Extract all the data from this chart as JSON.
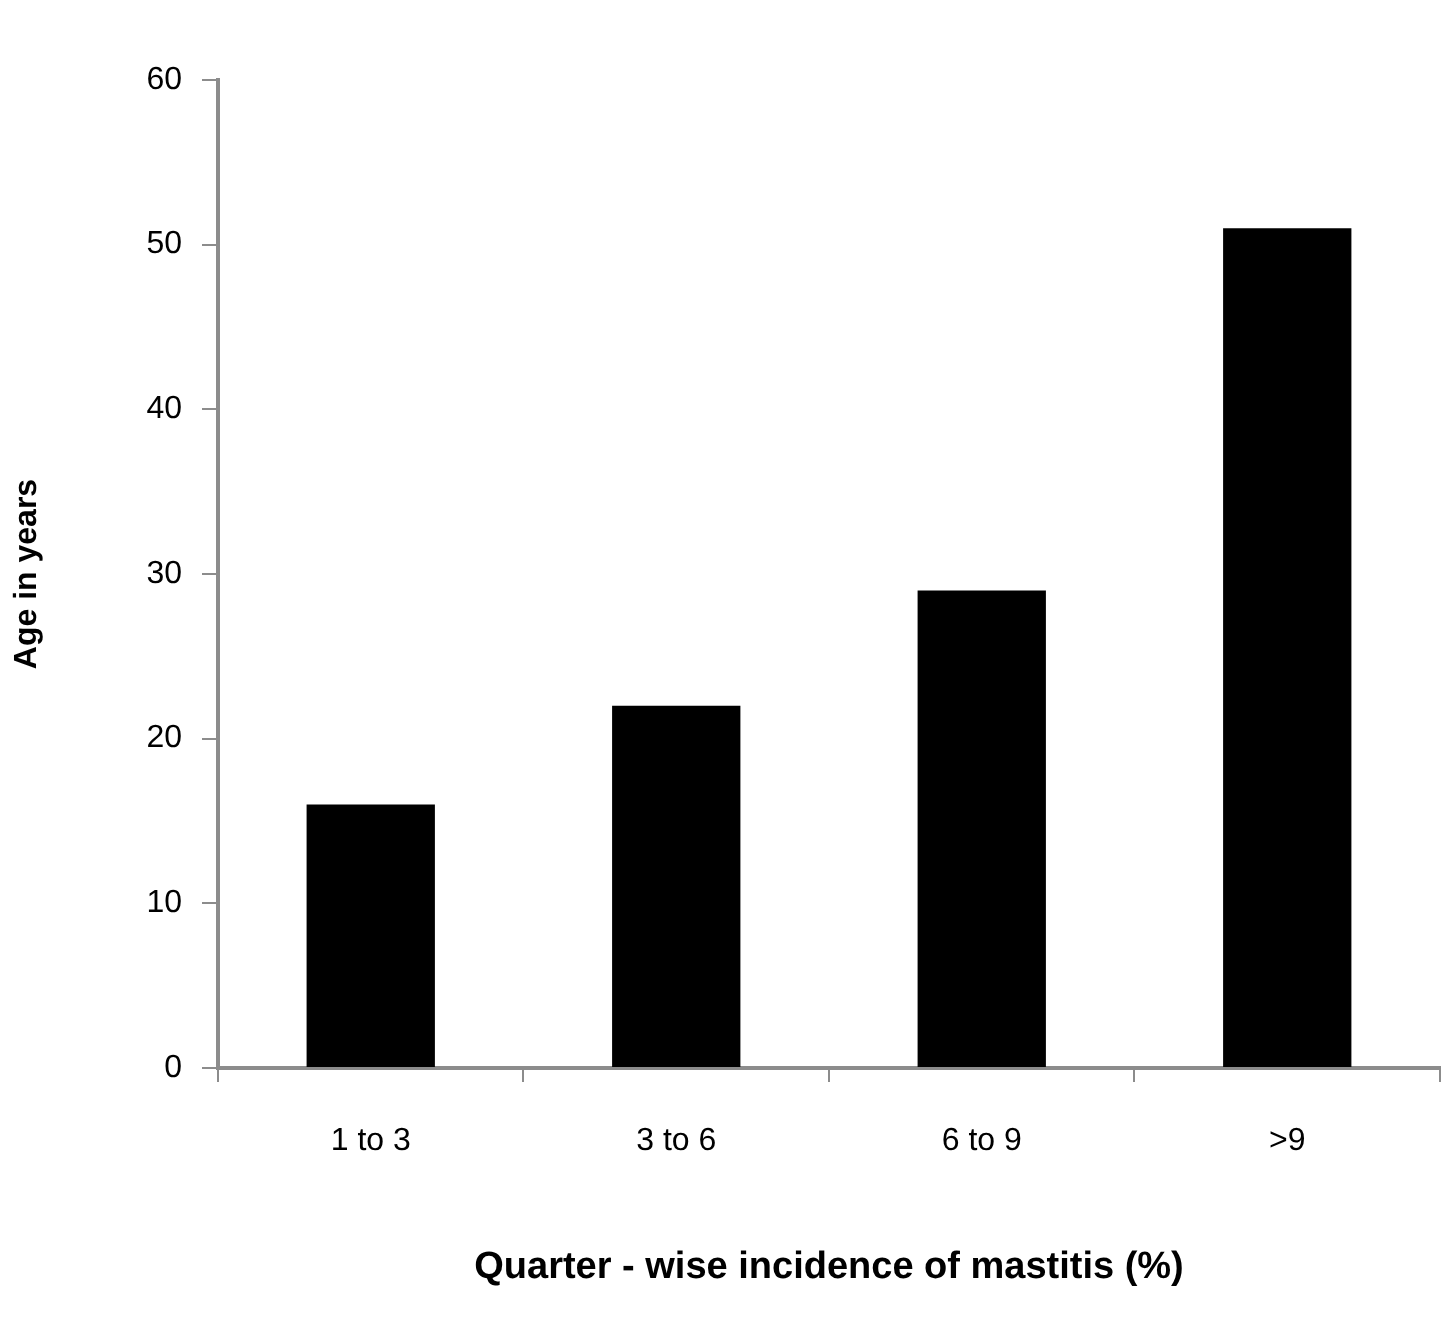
{
  "chart_data": {
    "type": "bar",
    "xlabel": "Quarter - wise incidence of mastitis (%)",
    "ylabel": "Age in years",
    "categories": [
      "1 to 3",
      "3 to 6",
      "6 to 9",
      ">9"
    ],
    "values": [
      16,
      22,
      29,
      51
    ],
    "color": "#000000",
    "ylim": [
      0,
      60
    ],
    "yticks": [
      0,
      10,
      20,
      30,
      40,
      50,
      60
    ],
    "grid": false,
    "legend": false
  }
}
